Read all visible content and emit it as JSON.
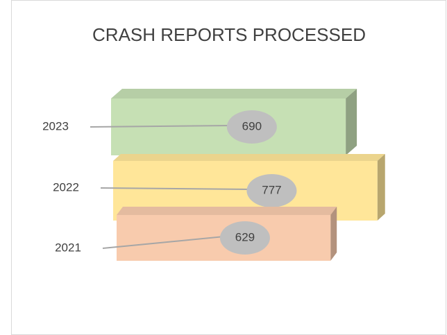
{
  "chart_data": {
    "type": "bar3d",
    "title": "CRASH REPORTS PROCESSED",
    "categories": [
      "2023",
      "2022",
      "2021"
    ],
    "values": [
      690,
      777,
      629
    ],
    "colors": [
      "#c6e0b4",
      "#ffe699",
      "#f8cbad"
    ]
  }
}
